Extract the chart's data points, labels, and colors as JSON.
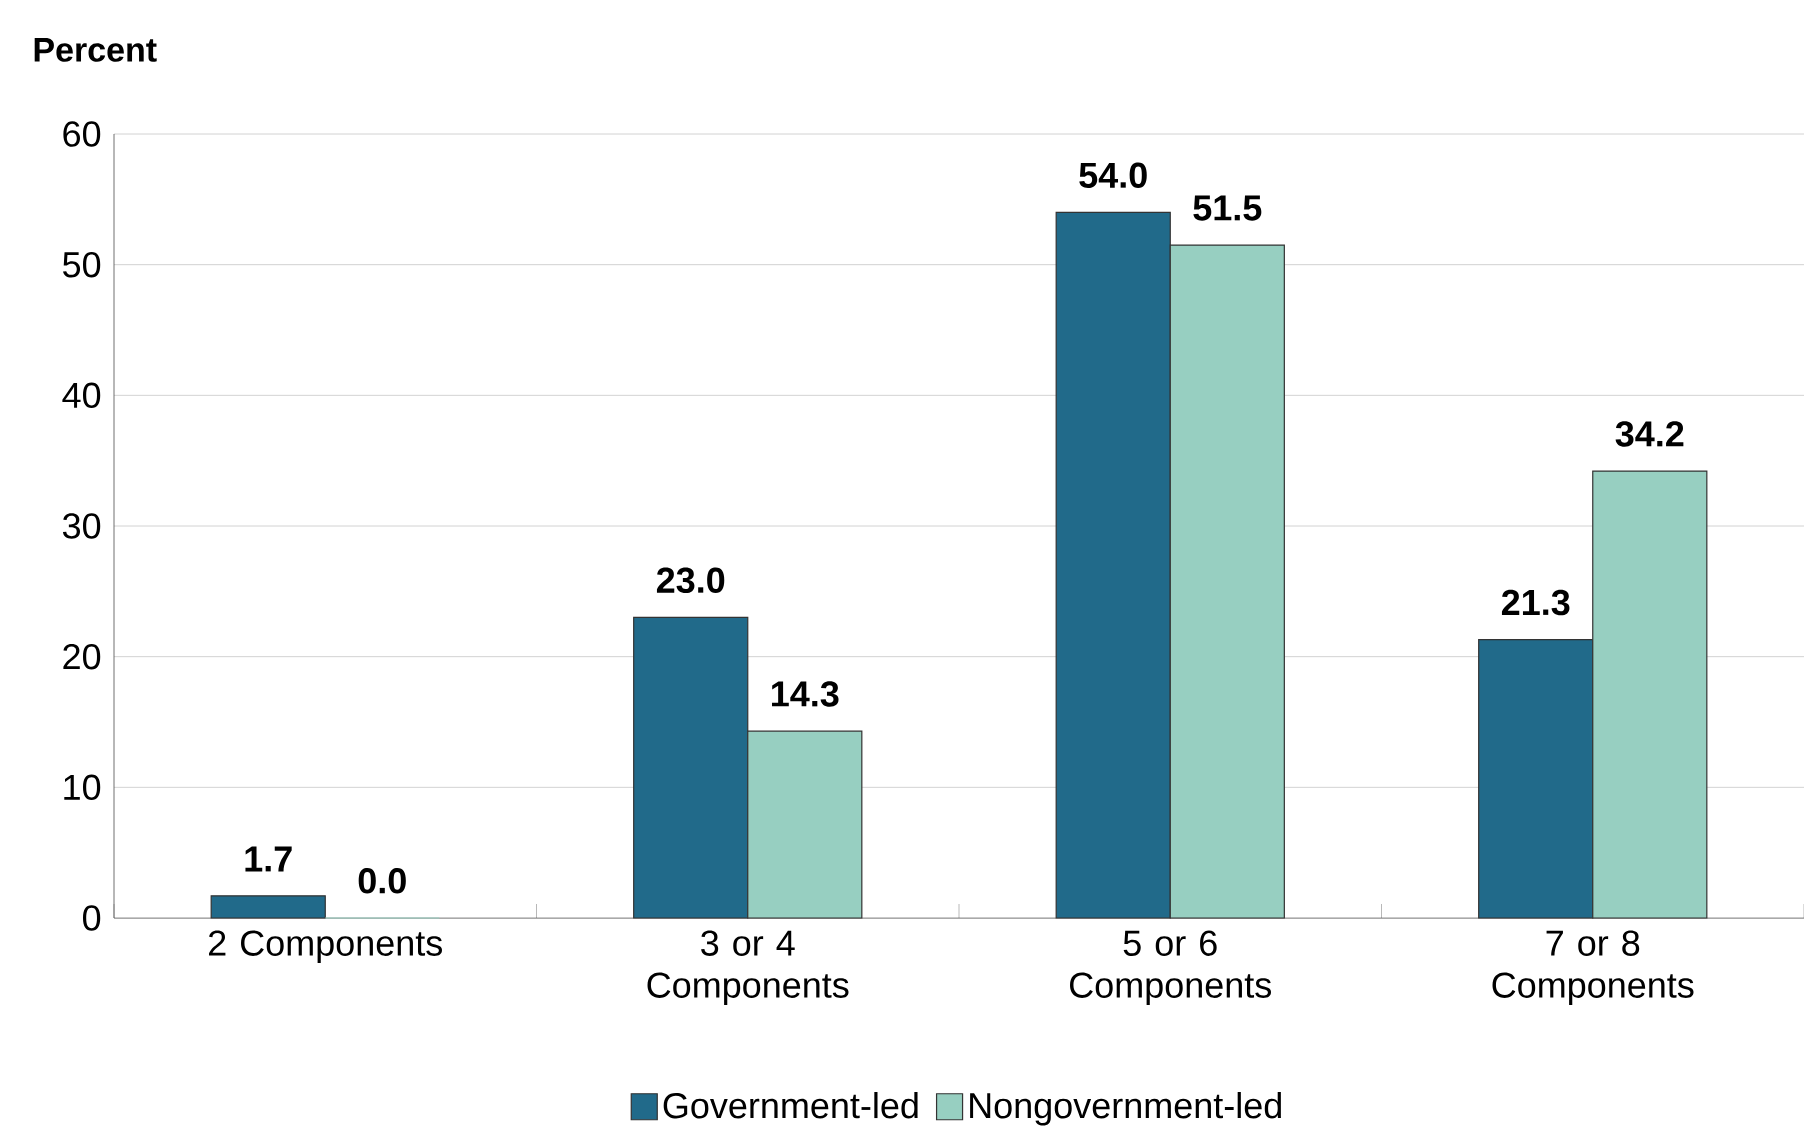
{
  "chart_data": {
    "type": "bar",
    "ylabel": "Percent",
    "categories": [
      "2 Components",
      "3 or 4 Components",
      "5 or 6 Components",
      "7 or 8 Components"
    ],
    "series": [
      {
        "name": "Government-led",
        "color": "#216a8a",
        "values": [
          1.7,
          23.0,
          54.0,
          21.3
        ],
        "value_labels": [
          "1.7",
          "23.0",
          "54.0",
          "21.3"
        ]
      },
      {
        "name": "Nongovernment-led",
        "color": "#97cfc1",
        "values": [
          0.0,
          14.3,
          51.5,
          34.2
        ],
        "value_labels": [
          "0.0",
          "14.3",
          "51.5",
          "34.2"
        ]
      }
    ],
    "ylim": [
      0,
      60
    ],
    "yticks": [
      0,
      10,
      20,
      30,
      40,
      50,
      60
    ],
    "grid": "y",
    "legend": "bottom"
  }
}
